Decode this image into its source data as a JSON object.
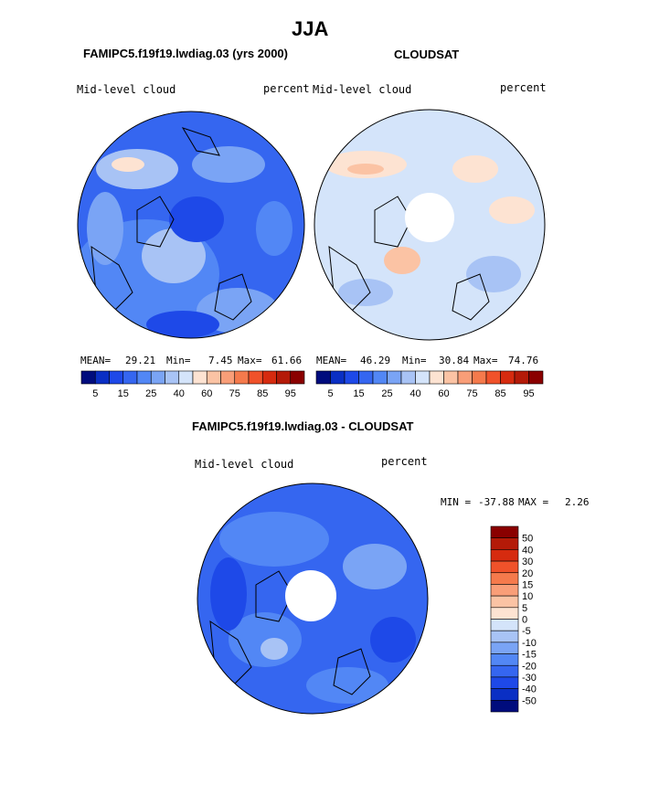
{
  "figure_title": "JJA",
  "panels": {
    "model": {
      "title": "FAMIPC5.f19f19.lwdiag.03 (yrs 2000)",
      "field_label": "Mid-level cloud",
      "units_label": "percent",
      "mean_label": "MEAN=",
      "mean_value": "29.21",
      "min_label": "Min=",
      "min_value": "7.45",
      "max_label": "Max=",
      "max_value": "61.66"
    },
    "obs": {
      "title": "CLOUDSAT",
      "field_label": "Mid-level cloud",
      "units_label": "percent",
      "mean_label": "MEAN=",
      "mean_value": "46.29",
      "min_label": "Min=",
      "min_value": "30.84",
      "max_label": "Max=",
      "max_value": "74.76"
    },
    "diff": {
      "title": "FAMIPC5.f19f19.lwdiag.03 - CLOUDSAT",
      "field_label": "Mid-level cloud",
      "units_label": "percent",
      "min_label": "MIN =",
      "min_value": "-37.88",
      "max_label": "MAX =",
      "max_value": "2.26"
    }
  },
  "chart_data": [
    {
      "type": "heatmap",
      "projection": "north-polar-stereographic",
      "title": "FAMIPC5.f19f19.lwdiag.03 (yrs 2000)",
      "variable": "Mid-level cloud",
      "units": "percent",
      "mean": 29.21,
      "min": 7.45,
      "max": 61.66,
      "colorbar": {
        "orientation": "horizontal",
        "tick_labels": [
          "5",
          "15",
          "25",
          "40",
          "60",
          "75",
          "85",
          "95"
        ],
        "colors": [
          "#000c7d",
          "#0a2fc4",
          "#1e49e8",
          "#3566f0",
          "#5287f5",
          "#7aa4f5",
          "#a8c3f5",
          "#d4e4fa",
          "#fde3d2",
          "#fbc3a4",
          "#f99e78",
          "#f57a4c",
          "#f0522a",
          "#d62b0f",
          "#b41a08",
          "#8a0000"
        ]
      }
    },
    {
      "type": "heatmap",
      "projection": "north-polar-stereographic",
      "title": "CLOUDSAT",
      "variable": "Mid-level cloud",
      "units": "percent",
      "mean": 46.29,
      "min": 30.84,
      "max": 74.76,
      "colorbar": {
        "orientation": "horizontal",
        "tick_labels": [
          "5",
          "15",
          "25",
          "40",
          "60",
          "75",
          "85",
          "95"
        ],
        "colors": [
          "#000c7d",
          "#0a2fc4",
          "#1e49e8",
          "#3566f0",
          "#5287f5",
          "#7aa4f5",
          "#a8c3f5",
          "#d4e4fa",
          "#fde3d2",
          "#fbc3a4",
          "#f99e78",
          "#f57a4c",
          "#f0522a",
          "#d62b0f",
          "#b41a08",
          "#8a0000"
        ]
      }
    },
    {
      "type": "heatmap",
      "projection": "north-polar-stereographic",
      "title": "FAMIPC5.f19f19.lwdiag.03 - CLOUDSAT",
      "variable": "Mid-level cloud",
      "units": "percent",
      "min": -37.88,
      "max": 2.26,
      "colorbar": {
        "orientation": "vertical",
        "tick_labels": [
          "50",
          "40",
          "30",
          "20",
          "15",
          "10",
          "5",
          "0",
          "-5",
          "-10",
          "-15",
          "-20",
          "-30",
          "-40",
          "-50"
        ],
        "colors": [
          "#8a0000",
          "#b41a08",
          "#d62b0f",
          "#f0522a",
          "#f57a4c",
          "#f99e78",
          "#fbc3a4",
          "#fde3d2",
          "#d4e4fa",
          "#a8c3f5",
          "#7aa4f5",
          "#5287f5",
          "#3566f0",
          "#1e49e8",
          "#0a2fc4",
          "#000c7d"
        ]
      }
    }
  ]
}
